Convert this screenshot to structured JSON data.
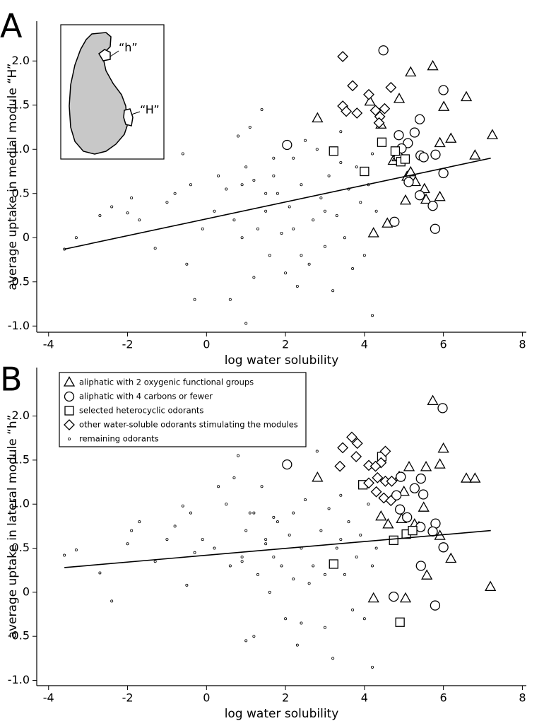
{
  "chart_data": [
    {
      "type": "scatter",
      "panel_label": "A",
      "xlabel": "log water solubility",
      "ylabel": "average uptake in medial module “H”",
      "annotations": [
        "“h”",
        "“H”"
      ],
      "xlim": [
        -4.3,
        8.1
      ],
      "ylim": [
        -1.07,
        2.45
      ],
      "xticks": [
        -4,
        -2,
        0,
        2,
        4,
        6,
        8
      ],
      "yticks": [
        {
          "value": -1,
          "label": "-1.0"
        },
        -0.5,
        0,
        0.5,
        {
          "value": 1,
          "label": "1.0"
        },
        1.5,
        {
          "value": 2,
          "label": "2.0"
        }
      ],
      "fit": {
        "x": [
          -3.6,
          7.2
        ],
        "y": [
          -0.13,
          0.9
        ]
      },
      "series": [
        {
          "marker": "triangle",
          "color": "#000000",
          "x": [
            2.81,
            5.17,
            5.73,
            4.88,
            4.14,
            6.58,
            6.01,
            4.42,
            6.19,
            5.91,
            7.24,
            6.8,
            4.23,
            4.58,
            5.04,
            5.08,
            5.17,
            5.29,
            5.52,
            5.56,
            5.91,
            4.73,
            4.83
          ],
          "y": [
            1.35,
            1.87,
            1.94,
            1.57,
            1.54,
            1.59,
            1.48,
            1.28,
            1.12,
            1.07,
            1.16,
            0.93,
            0.05,
            0.16,
            0.42,
            0.69,
            0.74,
            0.63,
            0.55,
            0.43,
            0.46,
            0.87,
            0.91
          ]
        },
        {
          "marker": "circle",
          "color": "#000000",
          "x": [
            4.48,
            6.0,
            2.04,
            5.4,
            5.27,
            4.87,
            5.1,
            4.94,
            4.87,
            5.42,
            5.5,
            5.8,
            6.0,
            5.12,
            5.4,
            5.73,
            5.79,
            4.76
          ],
          "y": [
            2.12,
            1.67,
            1.05,
            1.34,
            1.19,
            1.16,
            1.07,
            1.01,
            0.91,
            0.93,
            0.91,
            0.94,
            0.73,
            0.63,
            0.48,
            0.36,
            0.1,
            0.18
          ]
        },
        {
          "marker": "square",
          "color": "#000000",
          "x": [
            3.22,
            4.44,
            4.0,
            4.78,
            4.92,
            5.03
          ],
          "y": [
            0.98,
            1.08,
            0.75,
            0.98,
            0.86,
            0.89
          ]
        },
        {
          "marker": "diamond",
          "color": "#000000",
          "x": [
            3.45,
            3.7,
            4.11,
            4.67,
            3.45,
            3.54,
            3.81,
            4.28,
            4.51,
            4.39,
            4.37
          ],
          "y": [
            2.05,
            1.72,
            1.62,
            1.7,
            1.49,
            1.43,
            1.41,
            1.44,
            1.46,
            1.37,
            1.3
          ]
        },
        {
          "marker": "dot",
          "color": "#000000",
          "x": [
            -3.6,
            -3.3,
            -2.7,
            -2.4,
            -2.0,
            -1.9,
            -1.7,
            -1.3,
            -1.0,
            -0.8,
            -0.6,
            -0.5,
            -0.4,
            -0.3,
            -0.1,
            0.2,
            0.3,
            0.5,
            0.6,
            0.7,
            0.8,
            0.9,
            1.0,
            1.1,
            1.2,
            1.3,
            1.4,
            1.5,
            1.6,
            1.7,
            1.8,
            1.9,
            2.0,
            2.1,
            2.2,
            2.3,
            2.4,
            2.5,
            2.6,
            2.7,
            2.8,
            2.9,
            3.0,
            3.1,
            3.2,
            3.3,
            3.4,
            3.5,
            3.6,
            3.7,
            3.8,
            3.9,
            4.0,
            4.1,
            4.2,
            4.3,
            1.0,
            2.4,
            3.4,
            2.2,
            1.7,
            0.9,
            1.5,
            3.0,
            4.2,
            1.2
          ],
          "y": [
            -0.13,
            0.0,
            0.25,
            0.35,
            0.28,
            0.45,
            0.2,
            -0.12,
            0.4,
            0.5,
            0.95,
            -0.3,
            0.6,
            -0.7,
            0.1,
            0.3,
            0.7,
            0.55,
            -0.7,
            0.2,
            1.15,
            0.6,
            0.8,
            1.25,
            -0.45,
            0.1,
            1.45,
            0.3,
            -0.2,
            0.9,
            0.5,
            0.05,
            -0.4,
            0.35,
            0.9,
            -0.55,
            0.6,
            1.1,
            -0.3,
            0.2,
            1.0,
            0.45,
            -0.1,
            0.7,
            -0.6,
            0.25,
            1.2,
            0.0,
            0.55,
            -0.35,
            0.8,
            0.4,
            -0.2,
            0.6,
            0.95,
            0.3,
            -0.97,
            -0.2,
            0.85,
            0.1,
            0.7,
            0.0,
            0.5,
            0.3,
            -0.88,
            0.65
          ]
        }
      ]
    },
    {
      "type": "scatter",
      "panel_label": "B",
      "xlabel": "log water solubility",
      "ylabel": "average uptake in lateral module “h”",
      "legend": "top-left",
      "xlim": [
        -4.3,
        8.1
      ],
      "ylim": [
        -1.06,
        2.55
      ],
      "xticks": [
        -4,
        -2,
        0,
        2,
        4,
        6,
        8
      ],
      "yticks": [
        {
          "value": -1,
          "label": "-1.0"
        },
        -0.5,
        0,
        0.5,
        {
          "value": 1,
          "label": "1.0"
        },
        1.5,
        {
          "value": 2,
          "label": "2.0"
        }
      ],
      "fit": {
        "x": [
          -3.6,
          7.2
        ],
        "y": [
          0.28,
          0.7
        ]
      },
      "series": [
        {
          "name": "aliphatic with 2 oxygenic functional groups",
          "marker": "triangle",
          "color": "#000000",
          "x": [
            5.73,
            6.0,
            5.91,
            5.56,
            5.13,
            4.88,
            2.81,
            6.58,
            6.8,
            5.0,
            5.5,
            4.42,
            4.94,
            4.6,
            5.27,
            5.38,
            5.91,
            6.19,
            5.58,
            7.19,
            4.23,
            5.04
          ],
          "y": [
            2.17,
            1.63,
            1.45,
            1.42,
            1.42,
            1.31,
            1.3,
            1.29,
            1.29,
            1.14,
            0.96,
            0.86,
            0.83,
            0.77,
            0.77,
            0.74,
            0.64,
            0.38,
            0.19,
            0.06,
            -0.07,
            -0.07
          ]
        },
        {
          "name": "aliphatic with 4 carbons or fewer",
          "marker": "circle",
          "color": "#000000",
          "x": [
            5.98,
            2.04,
            5.43,
            4.92,
            5.27,
            5.49,
            4.81,
            4.9,
            5.08,
            5.8,
            5.42,
            5.73,
            6.0,
            5.43,
            4.74,
            5.79
          ],
          "y": [
            2.09,
            1.45,
            1.29,
            1.31,
            1.18,
            1.11,
            1.1,
            0.94,
            0.85,
            0.78,
            0.74,
            0.69,
            0.51,
            0.3,
            -0.05,
            -0.15
          ]
        },
        {
          "name": "selected heterocyclic odorants",
          "marker": "square",
          "color": "#000000",
          "x": [
            3.96,
            4.44,
            4.74,
            5.06,
            5.22,
            3.22,
            4.9
          ],
          "y": [
            1.22,
            1.54,
            0.59,
            0.66,
            0.7,
            0.32,
            -0.34
          ]
        },
        {
          "name": "other water-soluble odorants stimulating the modules",
          "marker": "diamond",
          "color": "#000000",
          "x": [
            3.68,
            3.82,
            3.45,
            4.53,
            3.79,
            4.11,
            4.42,
            4.28,
            3.38,
            4.33,
            4.11,
            4.53,
            4.69,
            4.3,
            4.49,
            4.67
          ],
          "y": [
            1.76,
            1.69,
            1.64,
            1.6,
            1.54,
            1.44,
            1.47,
            1.43,
            1.43,
            1.3,
            1.24,
            1.26,
            1.26,
            1.14,
            1.07,
            1.04
          ]
        },
        {
          "name": "remaining odorants",
          "marker": "dot",
          "color": "#000000",
          "x": [
            -3.6,
            -3.3,
            -2.7,
            -2.4,
            -2.0,
            -1.9,
            -1.7,
            -1.3,
            -1.0,
            -0.8,
            -0.6,
            -0.5,
            -0.4,
            -0.3,
            -0.1,
            0.2,
            0.3,
            0.5,
            0.6,
            0.7,
            0.8,
            0.9,
            1.0,
            1.1,
            1.2,
            1.3,
            1.4,
            1.5,
            1.6,
            1.7,
            1.8,
            1.9,
            2.0,
            2.1,
            2.2,
            2.3,
            2.4,
            2.5,
            2.6,
            2.7,
            2.8,
            2.9,
            3.0,
            3.1,
            3.2,
            3.3,
            3.4,
            3.5,
            3.6,
            3.7,
            3.8,
            3.9,
            4.0,
            4.1,
            4.2,
            4.3,
            1.0,
            2.4,
            3.4,
            2.2,
            1.7,
            0.9,
            1.5,
            3.0,
            4.2,
            1.2
          ],
          "y": [
            0.42,
            0.48,
            0.22,
            -0.1,
            0.55,
            0.7,
            0.8,
            0.35,
            0.6,
            0.75,
            0.98,
            0.08,
            0.9,
            0.45,
            0.6,
            0.5,
            1.2,
            1.0,
            0.3,
            1.3,
            1.55,
            0.4,
            0.7,
            0.9,
            -0.5,
            0.2,
            1.2,
            0.6,
            0.0,
            0.4,
            0.8,
            0.3,
            -0.3,
            0.65,
            0.9,
            -0.6,
            0.5,
            1.05,
            0.1,
            0.3,
            1.6,
            0.7,
            -0.4,
            0.95,
            -0.75,
            0.5,
            1.1,
            0.2,
            0.8,
            -0.2,
            0.4,
            0.65,
            -0.3,
            1.0,
            0.3,
            0.5,
            -0.55,
            -0.35,
            0.6,
            0.15,
            0.85,
            0.35,
            0.55,
            0.2,
            -0.85,
            0.9
          ]
        }
      ]
    }
  ]
}
